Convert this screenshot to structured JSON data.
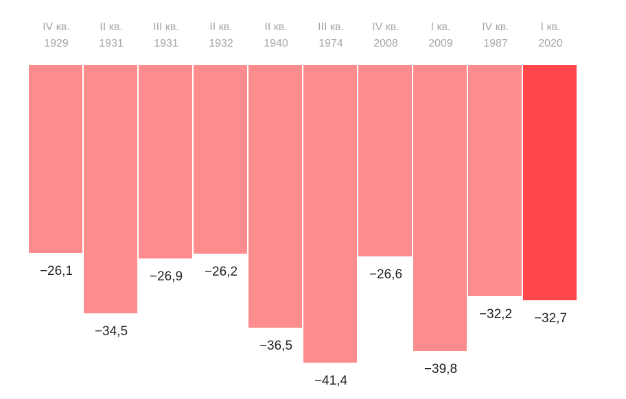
{
  "chart_data": {
    "type": "bar",
    "orientation": "vertical-downward",
    "title": "",
    "xlabel": "",
    "ylabel": "",
    "categories": [
      "IV кв. 1929",
      "II кв. 1931",
      "III кв. 1931",
      "II кв. 1932",
      "II кв. 1940",
      "III кв. 1974",
      "IV кв. 2008",
      "I кв. 2009",
      "IV кв. 1987",
      "I кв. 2020"
    ],
    "category_lines": [
      [
        "IV кв.",
        "1929"
      ],
      [
        "II кв.",
        "1931"
      ],
      [
        "III кв.",
        "1931"
      ],
      [
        "II кв.",
        "1932"
      ],
      [
        "II кв.",
        "1940"
      ],
      [
        "III кв.",
        "1974"
      ],
      [
        "IV кв.",
        "2008"
      ],
      [
        "I кв.",
        "2009"
      ],
      [
        "IV кв.",
        "1987"
      ],
      [
        "I кв.",
        "2020"
      ]
    ],
    "values": [
      -26.1,
      -34.5,
      -26.9,
      -26.2,
      -36.5,
      -41.4,
      -26.6,
      -39.8,
      -32.2,
      -32.7
    ],
    "value_labels": [
      "−26,1",
      "−34,5",
      "−26,9",
      "−26,2",
      "−36,5",
      "−41,4",
      "−26,6",
      "−39,8",
      "−32,2",
      "−32,7"
    ],
    "highlighted_index": 9,
    "colors": {
      "bar": "#fd8c8e",
      "highlight": "#ff464b",
      "category_text": "#a6a6a6",
      "value_text": "#222222"
    },
    "ylim": [
      -42,
      0
    ],
    "grid": false,
    "legend": null
  }
}
